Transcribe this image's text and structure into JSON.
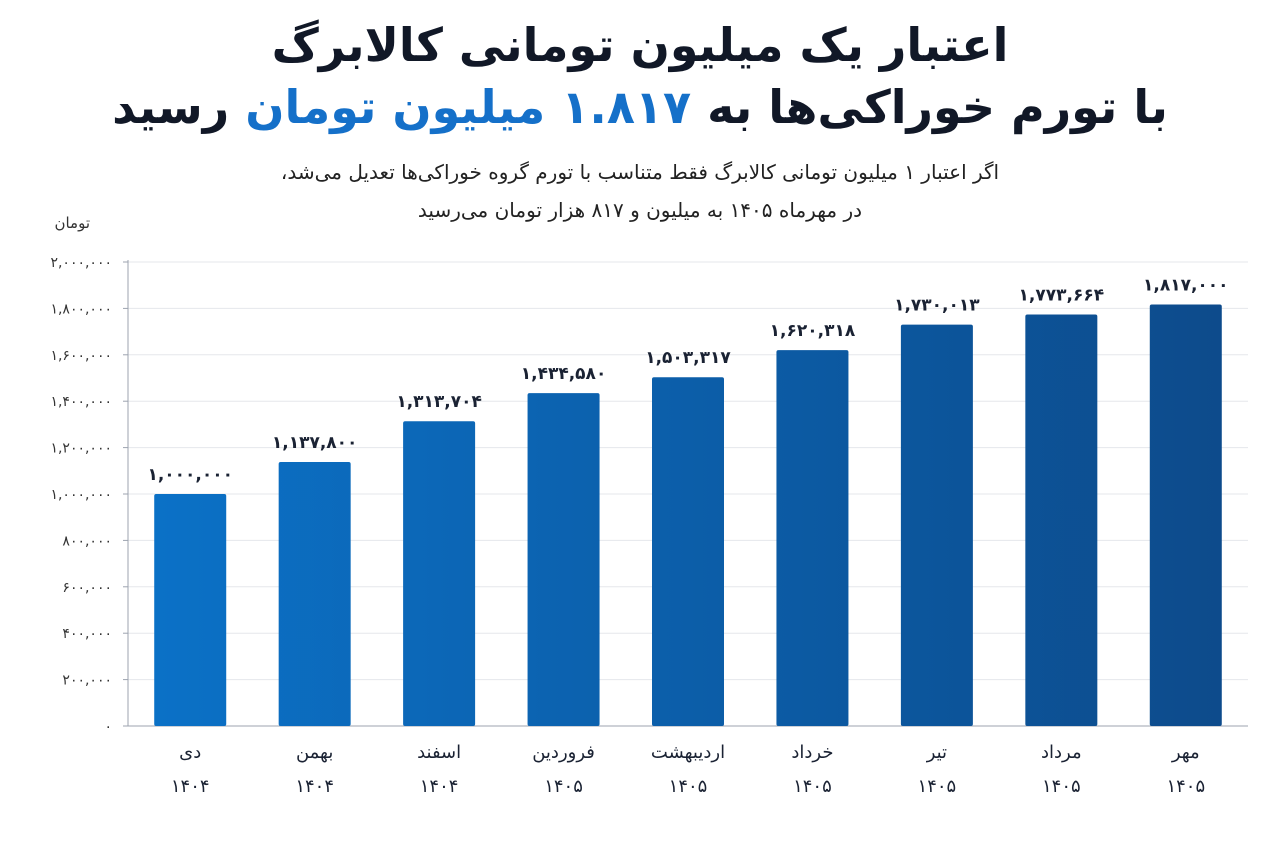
{
  "title": {
    "line1": "اعتبار یک میلیون تومانی کالابرگ",
    "line2_part1": "با تورم خوراکی‌ها به",
    "line2_highlight": "۱.۸۱۷ میلیون تومان",
    "line2_part2": "رسید"
  },
  "subtitle": {
    "line1": "اگر اعتبار ۱ میلیون تومانی کالابرگ فقط متناسب با تورم گروه خوراکی‌ها تعدیل می‌شد،",
    "line2": "در مهرماه ۱۴۰۵ به میلیون و ۸۱۷ هزار تومان می‌رسید"
  },
  "colors": {
    "highlight": "#1570c9",
    "bar_start": "#0b72c8",
    "bar_end": "#0d4a8a",
    "grid": "#e5e7eb",
    "axis": "#9ca3af"
  },
  "chart_data": {
    "type": "bar",
    "unit_label": "تومان",
    "ylim": [
      0,
      2000000
    ],
    "yticks": [
      0,
      200000,
      400000,
      600000,
      800000,
      1000000,
      1200000,
      1400000,
      1600000,
      1800000,
      2000000
    ],
    "ytick_labels": [
      "۰",
      "۲۰۰,۰۰۰",
      "۴۰۰,۰۰۰",
      "۶۰۰,۰۰۰",
      "۸۰۰,۰۰۰",
      "۱,۰۰۰,۰۰۰",
      "۱,۲۰۰,۰۰۰",
      "۱,۴۰۰,۰۰۰",
      "۱,۶۰۰,۰۰۰",
      "۱,۸۰۰,۰۰۰",
      "۲,۰۰۰,۰۰۰"
    ],
    "grid": true,
    "categories": [
      {
        "month": "دی",
        "year": "۱۴۰۴"
      },
      {
        "month": "بهمن",
        "year": "۱۴۰۴"
      },
      {
        "month": "اسفند",
        "year": "۱۴۰۴"
      },
      {
        "month": "فروردین",
        "year": "۱۴۰۵"
      },
      {
        "month": "اردیبهشت",
        "year": "۱۴۰۵"
      },
      {
        "month": "خرداد",
        "year": "۱۴۰۵"
      },
      {
        "month": "تیر",
        "year": "۱۴۰۵"
      },
      {
        "month": "مرداد",
        "year": "۱۴۰۵"
      },
      {
        "month": "مهر",
        "year": "۱۴۰۵"
      }
    ],
    "values": [
      1000000,
      1137800,
      1313704,
      1434580,
      1503317,
      1620318,
      1730013,
      1773664,
      1817000
    ],
    "value_labels": [
      "۱,۰۰۰,۰۰۰",
      "۱,۱۳۷,۸۰۰",
      "۱,۳۱۳,۷۰۴",
      "۱,۴۳۴,۵۸۰",
      "۱,۵۰۳,۳۱۷",
      "۱,۶۲۰,۳۱۸",
      "۱,۷۳۰,۰۱۳",
      "۱,۷۷۳,۶۶۴",
      "۱,۸۱۷,۰۰۰"
    ]
  }
}
